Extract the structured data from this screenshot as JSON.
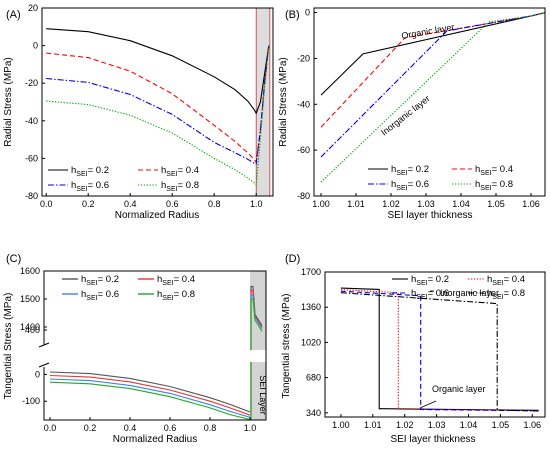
{
  "chart_data": [
    {
      "panel": "(A)",
      "type": "line",
      "xlabel": "Normalized Radius",
      "ylabel": "Radial Stress (MPa)",
      "xlim": [
        -0.02,
        1.08
      ],
      "ylim": [
        -80,
        20
      ],
      "xticks": [
        "0.0",
        "0.2",
        "0.4",
        "0.6",
        "0.8",
        "1.0"
      ],
      "yticks": [
        "20",
        "0",
        "-20",
        "-40",
        "-60",
        "-80"
      ],
      "legend_position": "bottom-left",
      "series": [
        {
          "name": "h",
          "sub": "SEI",
          "suffix": "= 0.2",
          "color": "#000000",
          "dash": "solid",
          "x": [
            0,
            0.2,
            0.4,
            0.6,
            0.8,
            0.9,
            0.96,
            0.99,
            1.0,
            1.02,
            1.04,
            1.06
          ],
          "y": [
            9,
            7.4,
            2.6,
            -5.4,
            -16.6,
            -23.5,
            -29.5,
            -34,
            -36,
            -30,
            -15,
            0
          ]
        },
        {
          "name": "h",
          "sub": "SEI",
          "suffix": "= 0.4",
          "color": "#ff0000",
          "dash": "dashed",
          "x": [
            0,
            0.2,
            0.4,
            0.6,
            0.8,
            0.9,
            0.96,
            0.99,
            1.0,
            1.02,
            1.04,
            1.06
          ],
          "y": [
            -4,
            -6.4,
            -13.6,
            -25.6,
            -42.4,
            -51,
            -57,
            -60.5,
            -62,
            -45,
            -20,
            0
          ]
        },
        {
          "name": "h",
          "sub": "SEI",
          "suffix": "= 0.6",
          "color": "#0000dd",
          "dash": "dashdot",
          "x": [
            0,
            0.2,
            0.4,
            0.6,
            0.8,
            0.9,
            0.96,
            0.99,
            1.0,
            1.02,
            1.04,
            1.06
          ],
          "y": [
            -17.5,
            -19.6,
            -26,
            -36.6,
            -51.5,
            -57,
            -60.5,
            -62.5,
            -63,
            -45,
            -20,
            0
          ]
        },
        {
          "name": "h",
          "sub": "SEI",
          "suffix": "= 0.8",
          "color": "#00aa00",
          "dash": "dotted",
          "x": [
            0,
            0.2,
            0.4,
            0.6,
            0.8,
            0.9,
            0.96,
            0.99,
            1.0,
            1.02,
            1.04,
            1.06
          ],
          "y": [
            -29.5,
            -31.4,
            -37,
            -46.5,
            -60,
            -66,
            -70.5,
            -73,
            -74,
            -50,
            -22,
            0
          ]
        }
      ]
    },
    {
      "panel": "(B)",
      "type": "line",
      "xlabel": "SEI layer thickness",
      "ylabel": "Radial Stress (MPa)",
      "xlim": [
        0.998,
        1.064
      ],
      "ylim": [
        -80,
        2
      ],
      "xticks": [
        "1.00",
        "1.01",
        "1.02",
        "1.03",
        "1.04",
        "1.05",
        "1.06"
      ],
      "yticks": [
        "0",
        "-20",
        "-40",
        "-60",
        "-80"
      ],
      "legend_position": "bottom-right",
      "annotations": [
        "Organic layer",
        "Inorganic layer"
      ],
      "series": [
        {
          "name": "h",
          "sub": "SEI",
          "suffix": "= 0.2",
          "color": "#000000",
          "dash": "solid",
          "x": [
            1.0,
            1.012,
            1.06,
            1.064
          ],
          "y": [
            -36,
            -18,
            -1.5,
            0
          ]
        },
        {
          "name": "h",
          "sub": "SEI",
          "suffix": "= 0.4",
          "color": "#ff0000",
          "dash": "dashed",
          "x": [
            1.0,
            1.024,
            1.06,
            1.064
          ],
          "y": [
            -50,
            -11,
            -1.5,
            0
          ]
        },
        {
          "name": "h",
          "sub": "SEI",
          "suffix": "= 0.6",
          "color": "#0000dd",
          "dash": "dashdot",
          "x": [
            1.0,
            1.036,
            1.06,
            1.064
          ],
          "y": [
            -63,
            -8,
            -1.5,
            0
          ]
        },
        {
          "name": "h",
          "sub": "SEI",
          "suffix": "= 0.8",
          "color": "#00aa00",
          "dash": "dotted",
          "x": [
            1.0,
            1.048,
            1.06,
            1.064
          ],
          "y": [
            -74,
            -4,
            -1.5,
            0
          ]
        }
      ]
    },
    {
      "panel": "(C)",
      "type": "line",
      "xlabel": "Normalized Radius",
      "ylabel": "Tangential Stress (MPa)",
      "xlim": [
        -0.03,
        1.08
      ],
      "ylim_lower": [
        -170,
        50
      ],
      "ylim_upper": [
        1350,
        1600
      ],
      "xticks": [
        "0.0",
        "0.2",
        "0.4",
        "0.6",
        "0.8",
        "1.0"
      ],
      "yticks_upper": [
        "1600",
        "1500",
        "1400"
      ],
      "ytick_mid": "400",
      "yticks_lower": [
        "0",
        "-100"
      ],
      "legend_position": "top-center",
      "annotations": [
        "SEI Layer"
      ],
      "series": [
        {
          "name": "h",
          "sub": "SEI",
          "suffix": "= 0.2",
          "color": "#555555",
          "x": [
            0,
            0.2,
            0.4,
            0.6,
            0.8,
            0.9,
            1.0
          ],
          "y": [
            9,
            3,
            -15,
            -45,
            -87,
            -112,
            -140
          ],
          "spike_top": 1545,
          "spike_bottom": 1445
        },
        {
          "name": "h",
          "sub": "SEI",
          "suffix": "= 0.4",
          "color": "#ee3333",
          "x": [
            0,
            0.2,
            0.4,
            0.6,
            0.8,
            0.9,
            1.0
          ],
          "y": [
            -4,
            -10,
            -28,
            -58,
            -100,
            -125,
            -152
          ],
          "spike_top": 1530,
          "spike_bottom": 1440
        },
        {
          "name": "h",
          "sub": "SEI",
          "suffix": "= 0.6",
          "color": "#3388dd",
          "x": [
            0,
            0.2,
            0.4,
            0.6,
            0.8,
            0.9,
            1.0
          ],
          "y": [
            -17,
            -23,
            -41,
            -71,
            -113,
            -138,
            -160
          ],
          "spike_top": 1515,
          "spike_bottom": 1435
        },
        {
          "name": "h",
          "sub": "SEI",
          "suffix": "= 0.8",
          "color": "#22aa22",
          "x": [
            0,
            0.2,
            0.4,
            0.6,
            0.8,
            0.9,
            1.0
          ],
          "y": [
            -29,
            -35,
            -53,
            -83,
            -125,
            -150,
            -168
          ],
          "spike_top": 1500,
          "spike_bottom": 1425
        }
      ]
    },
    {
      "panel": "(D)",
      "type": "line",
      "xlabel": "SEI layer thickness",
      "ylabel": "Tangential stress (MPa)",
      "xlim": [
        0.995,
        1.064
      ],
      "ylim": [
        300,
        1700
      ],
      "xticks": [
        "1.00",
        "1.01",
        "1.02",
        "1.03",
        "1.04",
        "1.05",
        "1.06"
      ],
      "yticks": [
        "1700",
        "1360",
        "1020",
        "680",
        "340"
      ],
      "legend_position": "top-right",
      "annotations": [
        "Inorganic layer",
        "Organic layer"
      ],
      "series": [
        {
          "name": "h",
          "sub": "SEI",
          "suffix": "= 0.2",
          "color": "#000000",
          "dash": "solid",
          "x": [
            1.0,
            1.012,
            1.012,
            1.062
          ],
          "y": [
            1545,
            1532,
            380,
            365
          ]
        },
        {
          "name": "h",
          "sub": "SEI",
          "suffix": "= 0.4",
          "color": "#ff0000",
          "dash": "dotted",
          "x": [
            1.0,
            1.018,
            1.018,
            1.062
          ],
          "y": [
            1530,
            1500,
            375,
            362
          ]
        },
        {
          "name": "h",
          "sub": "SEI",
          "suffix": "= 0.6",
          "color": "#0000dd",
          "dash": "dashed",
          "x": [
            1.0,
            1.025,
            1.025,
            1.062
          ],
          "y": [
            1515,
            1470,
            372,
            360
          ]
        },
        {
          "name": "h",
          "sub": "SEI",
          "suffix": "= 0.8",
          "color": "#000000",
          "dash": "dashdot",
          "x": [
            1.0,
            1.049,
            1.049,
            1.062
          ],
          "y": [
            1500,
            1395,
            368,
            358
          ]
        }
      ]
    }
  ]
}
